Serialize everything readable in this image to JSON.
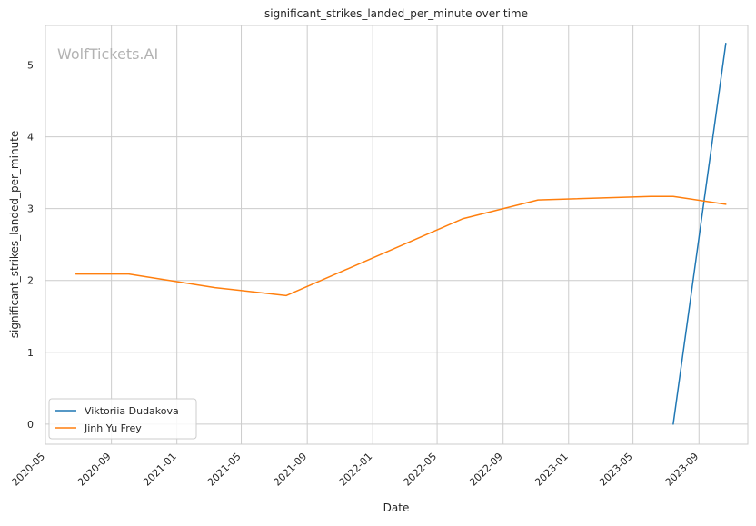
{
  "chart_data": {
    "type": "line",
    "title": "significant_strikes_landed_per_minute over time",
    "xlabel": "Date",
    "ylabel": "significant_strikes_landed_per_minute",
    "watermark": "WolfTickets.AI",
    "x_tick_labels": [
      "2020-05",
      "2020-09",
      "2021-01",
      "2021-05",
      "2021-09",
      "2022-01",
      "2022-05",
      "2022-09",
      "2023-01",
      "2023-05",
      "2023-09"
    ],
    "y_tick_labels": [
      "0",
      "1",
      "2",
      "3",
      "4",
      "5"
    ],
    "xlim": [
      "2020-05-01",
      "2023-12-01"
    ],
    "ylim": [
      -0.28,
      5.55
    ],
    "grid": true,
    "legend_position": "lower-left",
    "series": [
      {
        "name": "Viktoriia Dudakova",
        "color": "#1f77b4",
        "points": [
          {
            "x": "2023-07-15",
            "y": 0.0
          },
          {
            "x": "2023-10-21",
            "y": 5.3
          }
        ]
      },
      {
        "name": "Jinh Yu Frey",
        "color": "#ff7f0e",
        "points": [
          {
            "x": "2020-06-27",
            "y": 2.09
          },
          {
            "x": "2020-10-03",
            "y": 2.09
          },
          {
            "x": "2021-03-13",
            "y": 1.9
          },
          {
            "x": "2021-07-24",
            "y": 1.79
          },
          {
            "x": "2022-06-18",
            "y": 2.86
          },
          {
            "x": "2022-11-05",
            "y": 3.12
          },
          {
            "x": "2023-06-03",
            "y": 3.17
          },
          {
            "x": "2023-07-15",
            "y": 3.17
          },
          {
            "x": "2023-10-21",
            "y": 3.06
          }
        ]
      }
    ]
  }
}
